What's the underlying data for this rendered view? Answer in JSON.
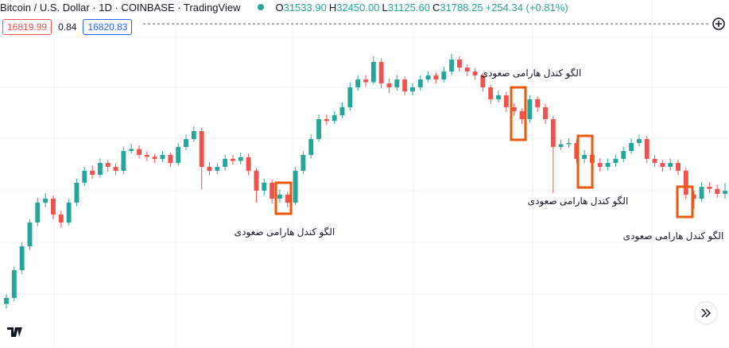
{
  "header": {
    "title": "Bitcoin / U.S. Dollar · 1D · COINBASE · TradingView",
    "open_label": "O",
    "open": "31533.90",
    "high_label": "H",
    "high": "32450.00",
    "low_label": "L",
    "low": "31125.60",
    "close_label": "C",
    "close": "31788.25",
    "change": "+254.34 (+0.81%)",
    "sell": "16819.99",
    "spread": "0.84",
    "buy": "16820.83"
  },
  "chart_data": {
    "type": "candlestick",
    "annotations": [
      "الگو کندل هارامی صعودی",
      "الگو کندل هارامی صعودی",
      "الگو کندل هارامی صعودی",
      "الگو کندل هارامی صعودی"
    ],
    "up_color": "#26a69a",
    "down_color": "#ef5350",
    "ylim": [
      18600,
      47800
    ],
    "open": [
      22300,
      22800,
      25130,
      27130,
      29130,
      30800,
      31130,
      29800,
      29130,
      30800,
      32470,
      33470,
      33130,
      34130,
      33800,
      33470,
      35130,
      35300,
      34800,
      34650,
      34470,
      34800,
      34130,
      35470,
      36130,
      36800,
      33800,
      33470,
      33800,
      34470,
      34300,
      34600,
      33470,
      31800,
      32470,
      31130,
      31470,
      30800,
      33470,
      34800,
      36130,
      37800,
      37650,
      38130,
      38800,
      40470,
      41130,
      40900,
      42600,
      40800,
      40470,
      41130,
      40130,
      40470,
      41130,
      41470,
      41130,
      41800,
      42800,
      42130,
      41800,
      41470,
      40470,
      39470,
      39800,
      38800,
      38470,
      37800,
      39470,
      38800,
      37800,
      35470,
      35700,
      35800,
      34470,
      34800,
      34130,
      33800,
      34130,
      34470,
      35130,
      35800,
      36130,
      34470,
      34130,
      33800,
      34130,
      33470,
      31470,
      31130,
      32130,
      31950,
      31533.9
    ],
    "high": [
      23100,
      25430,
      27500,
      29400,
      31200,
      31600,
      31400,
      30100,
      31100,
      32800,
      33800,
      33900,
      34500,
      34400,
      34100,
      35500,
      35700,
      35600,
      35100,
      34900,
      35100,
      35000,
      35800,
      36500,
      37200,
      37100,
      34200,
      34100,
      34800,
      34800,
      35000,
      34900,
      33700,
      32800,
      32700,
      31900,
      31700,
      33800,
      35100,
      36500,
      38200,
      38200,
      38500,
      39200,
      40900,
      41500,
      41500,
      43100,
      42900,
      41200,
      41500,
      41400,
      40800,
      41500,
      41800,
      41700,
      42200,
      43300,
      43100,
      42400,
      42100,
      41700,
      40700,
      40200,
      40100,
      39100,
      38700,
      39800,
      39700,
      39100,
      38100,
      36100,
      36200,
      36100,
      35200,
      35100,
      34500,
      34500,
      34800,
      35500,
      36200,
      36500,
      36400,
      34800,
      34400,
      34500,
      34400,
      33700,
      31800,
      32500,
      32500,
      32300,
      32450
    ],
    "low": [
      21900,
      22500,
      24800,
      26800,
      28800,
      30400,
      29400,
      28700,
      28900,
      30500,
      32200,
      32800,
      32900,
      33400,
      33100,
      33200,
      34900,
      34500,
      34300,
      34100,
      34200,
      33800,
      33900,
      35200,
      35900,
      31900,
      33100,
      33200,
      33500,
      34000,
      34000,
      33100,
      30800,
      31400,
      30700,
      30800,
      30400,
      30600,
      33200,
      34500,
      35900,
      37300,
      37400,
      37900,
      38500,
      40200,
      40500,
      40700,
      40400,
      40000,
      40200,
      39800,
      39800,
      40200,
      40900,
      40800,
      40900,
      41500,
      41800,
      41400,
      41100,
      40100,
      39100,
      39200,
      38400,
      38100,
      37400,
      37500,
      38400,
      37400,
      31600,
      35200,
      35400,
      34100,
      34100,
      33700,
      33400,
      33500,
      33800,
      34200,
      34900,
      35500,
      34100,
      33800,
      33400,
      33500,
      33100,
      31100,
      30300,
      30900,
      31600,
      31200,
      31125.6
    ],
    "close": [
      22800,
      25130,
      27130,
      29130,
      30800,
      31130,
      29800,
      29130,
      30800,
      32470,
      33470,
      33130,
      34130,
      33800,
      33470,
      35130,
      35300,
      34800,
      34650,
      34470,
      34800,
      34130,
      35470,
      36130,
      36800,
      33800,
      33470,
      33800,
      34470,
      34300,
      34600,
      33470,
      31800,
      32470,
      31130,
      31470,
      30800,
      33470,
      34800,
      36130,
      37800,
      37650,
      38130,
      38800,
      40470,
      41130,
      40900,
      42600,
      40800,
      40470,
      41130,
      40130,
      40470,
      41130,
      41470,
      41130,
      41800,
      42800,
      42130,
      41800,
      41470,
      40470,
      39470,
      39800,
      38800,
      38470,
      37800,
      39470,
      38800,
      37800,
      35470,
      35700,
      35800,
      34470,
      34800,
      34130,
      33800,
      34130,
      34470,
      35130,
      35800,
      36130,
      34470,
      34130,
      33800,
      34130,
      33470,
      31470,
      31130,
      32130,
      31950,
      31533.9,
      31788.25
    ]
  }
}
